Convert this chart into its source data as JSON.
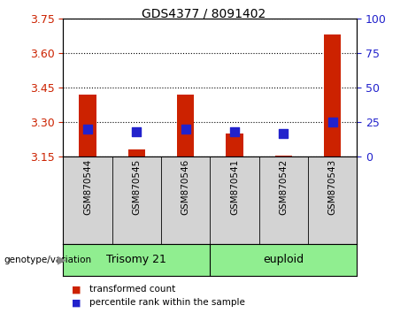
{
  "title": "GDS4377 / 8091402",
  "samples": [
    "GSM870544",
    "GSM870545",
    "GSM870546",
    "GSM870541",
    "GSM870542",
    "GSM870543"
  ],
  "transformed_counts": [
    3.42,
    3.18,
    3.42,
    3.25,
    3.155,
    3.68
  ],
  "percentile_ranks": [
    20,
    18,
    20,
    18,
    17,
    25
  ],
  "ylim_left": [
    3.15,
    3.75
  ],
  "yticks_left": [
    3.15,
    3.3,
    3.45,
    3.6,
    3.75
  ],
  "ylim_right": [
    0,
    100
  ],
  "yticks_right": [
    0,
    25,
    50,
    75,
    100
  ],
  "bar_bottom": 3.15,
  "bar_color": "#cc2200",
  "dot_color": "#2222cc",
  "grid_color": "#000000",
  "groups": [
    {
      "label": "Trisomy 21",
      "indices": [
        0,
        1,
        2
      ]
    },
    {
      "label": "euploid",
      "indices": [
        3,
        4,
        5
      ]
    }
  ],
  "group_label_prefix": "genotype/variation",
  "legend_items": [
    {
      "label": "transformed count",
      "color": "#cc2200"
    },
    {
      "label": "percentile rank within the sample",
      "color": "#2222cc"
    }
  ],
  "tick_label_color_left": "#cc2200",
  "tick_label_color_right": "#2222cc",
  "bg_xtick": "#d3d3d3",
  "bg_group": "#90ee90",
  "dot_size": 50,
  "bar_width": 0.35
}
